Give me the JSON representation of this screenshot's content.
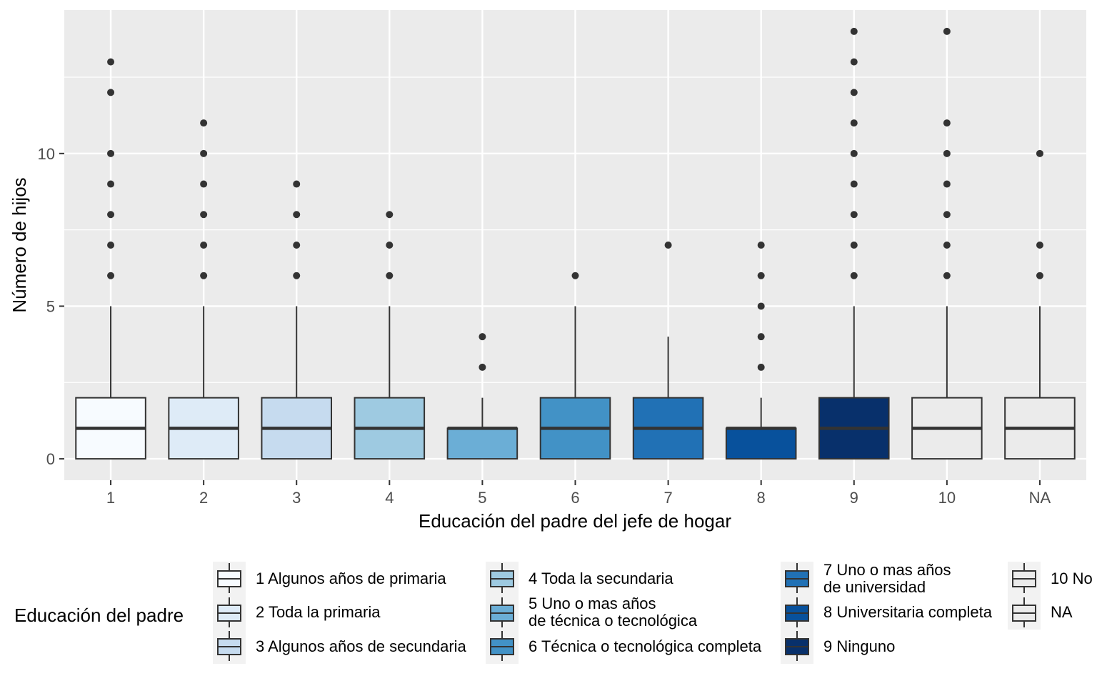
{
  "chart_data": {
    "type": "boxplot",
    "xlabel": "Educación del padre del jefe de hogar",
    "ylabel": "Número de hijos",
    "categories": [
      "1",
      "2",
      "3",
      "4",
      "5",
      "6",
      "7",
      "8",
      "9",
      "10",
      "NA"
    ],
    "y_ticks": [
      0,
      5,
      10
    ],
    "ylim": [
      -0.7,
      14.7
    ],
    "grid": true,
    "boxes": [
      {
        "category": "1",
        "lower_whisker": 0,
        "q1": 0,
        "median": 1,
        "q3": 2,
        "upper_whisker": 5,
        "outliers": [
          6,
          7,
          8,
          9,
          10,
          12,
          13
        ]
      },
      {
        "category": "2",
        "lower_whisker": 0,
        "q1": 0,
        "median": 1,
        "q3": 2,
        "upper_whisker": 5,
        "outliers": [
          6,
          7,
          8,
          9,
          10,
          11
        ]
      },
      {
        "category": "3",
        "lower_whisker": 0,
        "q1": 0,
        "median": 1,
        "q3": 2,
        "upper_whisker": 5,
        "outliers": [
          6,
          7,
          8,
          9
        ]
      },
      {
        "category": "4",
        "lower_whisker": 0,
        "q1": 0,
        "median": 1,
        "q3": 2,
        "upper_whisker": 5,
        "outliers": [
          6,
          7,
          8
        ]
      },
      {
        "category": "5",
        "lower_whisker": 0,
        "q1": 0,
        "median": 1,
        "q3": 1,
        "upper_whisker": 2,
        "outliers": [
          3,
          4
        ]
      },
      {
        "category": "6",
        "lower_whisker": 0,
        "q1": 0,
        "median": 1,
        "q3": 2,
        "upper_whisker": 5,
        "outliers": [
          6
        ]
      },
      {
        "category": "7",
        "lower_whisker": 0,
        "q1": 0,
        "median": 1,
        "q3": 2,
        "upper_whisker": 4,
        "outliers": [
          7
        ]
      },
      {
        "category": "8",
        "lower_whisker": 0,
        "q1": 0,
        "median": 1,
        "q3": 1,
        "upper_whisker": 2,
        "outliers": [
          3,
          4,
          5,
          6,
          7
        ]
      },
      {
        "category": "9",
        "lower_whisker": 0,
        "q1": 0,
        "median": 1,
        "q3": 2,
        "upper_whisker": 5,
        "outliers": [
          6,
          7,
          8,
          9,
          10,
          11,
          12,
          13,
          14
        ]
      },
      {
        "category": "10",
        "lower_whisker": 0,
        "q1": 0,
        "median": 1,
        "q3": 2,
        "upper_whisker": 5,
        "outliers": [
          6,
          7,
          8,
          9,
          10,
          11,
          14
        ]
      },
      {
        "category": "NA",
        "lower_whisker": 0,
        "q1": 0,
        "median": 1,
        "q3": 2,
        "upper_whisker": 5,
        "outliers": [
          6,
          7,
          10
        ]
      }
    ],
    "colors": [
      "#F7FBFF",
      "#DEEBF7",
      "#C6DBEF",
      "#9ECAE1",
      "#6BAED6",
      "#4292C6",
      "#2171B5",
      "#08519C",
      "#08306B",
      "#EBEBEB",
      "#EBEBEB"
    ],
    "legend": {
      "title": "Educación del padre",
      "position": "bottom",
      "entries": [
        "1 Algunos años de primaria",
        "2 Toda la primaria",
        "3 Algunos años de secundaria",
        "4 Toda la secundaria",
        "5 Uno o mas años\nde técnica o tecnológica",
        "6 Técnica o tecnológica completa",
        "7 Uno o mas años\nde universidad",
        "8 Universitaria completa",
        "9 Ninguno",
        "10 No",
        "NA"
      ]
    }
  }
}
